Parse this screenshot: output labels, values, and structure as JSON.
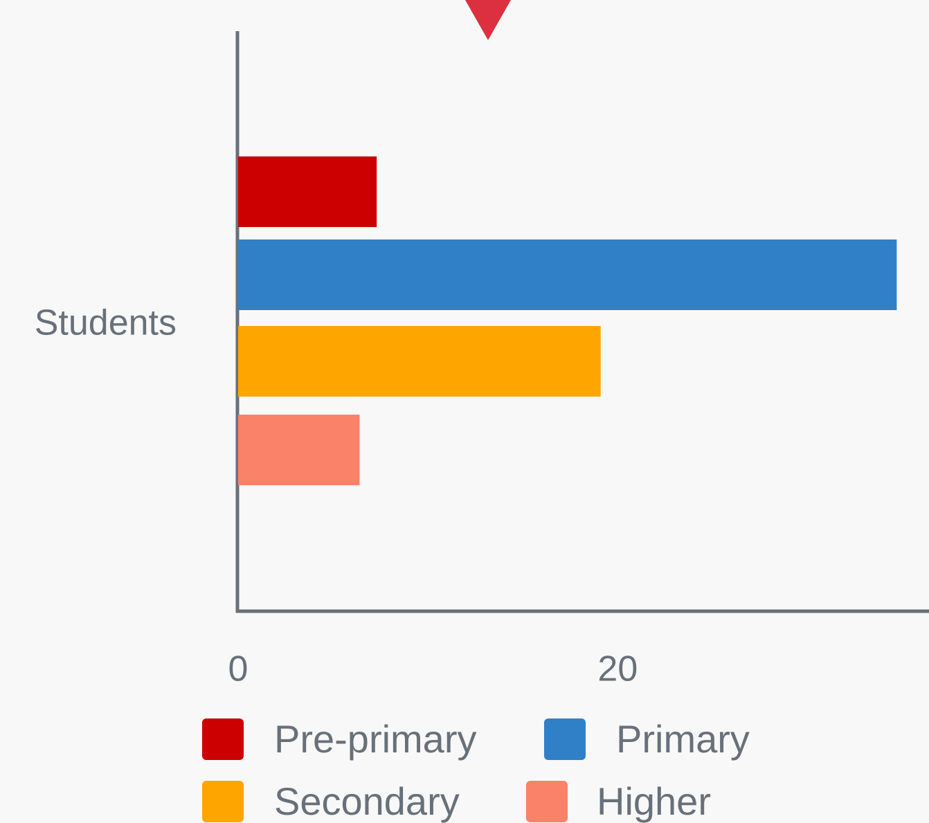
{
  "chart_data": {
    "type": "bar",
    "orientation": "horizontal",
    "categories": [
      "Students"
    ],
    "series": [
      {
        "name": "Pre-primary",
        "color": "#cc0000",
        "values": [
          7.3
        ]
      },
      {
        "name": "Primary",
        "color": "#3080c8",
        "values": [
          34.7
        ]
      },
      {
        "name": "Secondary",
        "color": "#ffa500",
        "values": [
          19.1
        ]
      },
      {
        "name": "Higher",
        "color": "#fa8268",
        "values": [
          6.4
        ]
      }
    ],
    "xlim": [
      0,
      36.4
    ],
    "xticks": [
      0,
      20
    ],
    "grid": false,
    "legend": "bottom"
  }
}
